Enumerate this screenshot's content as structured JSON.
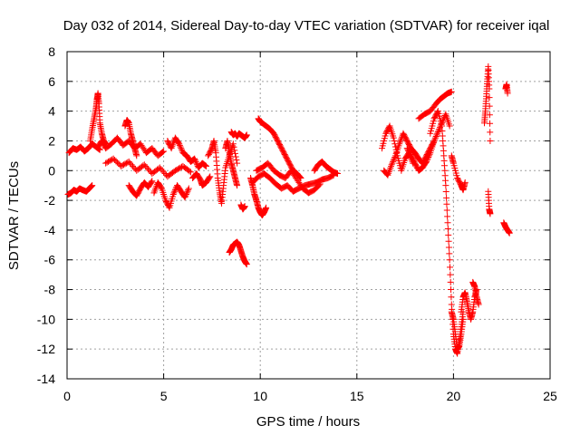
{
  "chart_data": {
    "type": "scatter",
    "title": "Day 032 of 2014, Sidereal Day-to-day VTEC variation (SDTVAR) for receiver iqal",
    "xlabel": "GPS time / hours",
    "ylabel": "SDTVAR / TECUs",
    "xlim": [
      0,
      25
    ],
    "ylim": [
      -14,
      8
    ],
    "xticks": [
      "0",
      "5",
      "10",
      "15",
      "20",
      "25"
    ],
    "yticks": [
      "8",
      "6",
      "4",
      "2",
      "0",
      "-2",
      "-4",
      "-6",
      "-8",
      "-10",
      "-12",
      "-14"
    ],
    "grid": true,
    "marker": "+",
    "color": "#ff0000",
    "series": [
      {
        "name": "SDTVAR",
        "segments": [
          {
            "x": [
              0.05,
              0.2,
              0.35,
              0.5,
              0.65,
              0.8,
              1.0,
              1.15,
              1.3
            ],
            "y": [
              -1.6,
              -1.5,
              -1.3,
              -1.4,
              -1.2,
              -1.3,
              -1.4,
              -1.2,
              -1.0
            ]
          },
          {
            "x": [
              0.1,
              0.3,
              0.5,
              0.7,
              0.9,
              1.1,
              1.3,
              1.5,
              1.7
            ],
            "y": [
              1.2,
              1.5,
              1.4,
              1.6,
              1.3,
              1.5,
              1.8,
              1.6,
              1.4
            ]
          },
          {
            "x": [
              1.2,
              1.3,
              1.4,
              1.5,
              1.55,
              1.6,
              1.65,
              1.7,
              1.8,
              1.9,
              2.0
            ],
            "y": [
              2.0,
              2.8,
              3.5,
              4.2,
              4.8,
              5.2,
              4.5,
              3.2,
              2.5,
              2.0,
              1.8
            ]
          },
          {
            "x": [
              1.6,
              1.8,
              2.0,
              2.3,
              2.6,
              2.9,
              3.2,
              3.5,
              3.8,
              4.1,
              4.4,
              4.7,
              5.0
            ],
            "y": [
              1.6,
              2.0,
              1.5,
              1.8,
              2.2,
              1.7,
              2.0,
              1.5,
              1.8,
              1.2,
              1.5,
              1.0,
              1.3
            ]
          },
          {
            "x": [
              2.0,
              2.4,
              2.8,
              3.2,
              3.6,
              4.0,
              4.4,
              4.8,
              5.2,
              5.6,
              6.0,
              6.4
            ],
            "y": [
              0.5,
              0.8,
              0.3,
              0.6,
              0.0,
              0.4,
              -0.2,
              0.2,
              -0.4,
              0.0,
              0.3,
              -0.1
            ]
          },
          {
            "x": [
              3.0,
              3.1,
              3.2,
              3.3,
              3.4,
              3.5,
              3.6
            ],
            "y": [
              3.0,
              3.4,
              3.2,
              2.5,
              2.0,
              1.5,
              1.0
            ]
          },
          {
            "x": [
              3.2,
              3.4,
              3.6,
              3.8,
              4.0,
              4.2,
              4.4
            ],
            "y": [
              -1.0,
              -1.4,
              -1.7,
              -1.2,
              -0.8,
              -1.1,
              -0.7
            ]
          },
          {
            "x": [
              4.5,
              4.7,
              4.9,
              5.1,
              5.3,
              5.5,
              5.7,
              5.9,
              6.1,
              6.3
            ],
            "y": [
              -1.5,
              -0.8,
              -1.2,
              -2.0,
              -2.5,
              -1.6,
              -1.0,
              -1.4,
              -1.8,
              -1.2
            ]
          },
          {
            "x": [
              5.2,
              5.4,
              5.6,
              5.8,
              6.0,
              6.2,
              6.4,
              6.6,
              6.8,
              7.0,
              7.2
            ],
            "y": [
              2.0,
              1.5,
              2.2,
              1.8,
              1.2,
              1.0,
              0.6,
              0.8,
              0.2,
              0.5,
              0.3
            ]
          },
          {
            "x": [
              6.5,
              6.7,
              6.9,
              7.0,
              7.2,
              7.4
            ],
            "y": [
              -0.5,
              -0.2,
              -0.6,
              -1.0,
              -0.8,
              -0.4
            ]
          },
          {
            "x": [
              7.3,
              7.5,
              7.6,
              7.7,
              7.8,
              7.9,
              8.0,
              8.1,
              8.2,
              8.4,
              8.6,
              8.8
            ],
            "y": [
              1.0,
              1.5,
              2.0,
              1.2,
              -0.5,
              -1.5,
              -2.2,
              -1.0,
              0.2,
              1.0,
              1.8,
              0.5
            ]
          },
          {
            "x": [
              8.2,
              8.3,
              8.4,
              8.5,
              8.6,
              8.7,
              8.8
            ],
            "y": [
              1.5,
              2.0,
              1.2,
              0.5,
              0.0,
              -0.5,
              -1.0
            ]
          },
          {
            "x": [
              8.5,
              8.6,
              8.7,
              8.8,
              8.9,
              9.0,
              9.1,
              9.2,
              9.3
            ],
            "y": [
              2.6,
              2.4,
              2.5,
              2.3,
              2.5,
              2.4,
              2.3,
              2.2,
              2.4
            ]
          },
          {
            "x": [
              9.0,
              9.1,
              9.2
            ],
            "y": [
              -2.3,
              -2.6,
              -2.4
            ]
          },
          {
            "x": [
              8.4,
              8.5,
              8.6,
              8.7,
              8.8,
              8.9,
              9.0,
              9.1,
              9.2,
              9.3
            ],
            "y": [
              -5.5,
              -5.3,
              -5.0,
              -4.9,
              -4.8,
              -5.0,
              -5.4,
              -5.8,
              -6.1,
              -6.3
            ]
          },
          {
            "x": [
              9.5,
              9.6,
              9.7,
              9.8,
              9.9,
              10.0,
              10.1,
              10.2,
              10.3
            ],
            "y": [
              -0.5,
              -1.0,
              -1.6,
              -2.0,
              -2.5,
              -2.8,
              -3.0,
              -2.8,
              -2.5
            ]
          },
          {
            "x": [
              9.9,
              10.0,
              10.1,
              10.3,
              10.5,
              10.7,
              10.9,
              11.1,
              11.3,
              11.5,
              11.7,
              11.9,
              12.1
            ],
            "y": [
              3.5,
              3.3,
              3.2,
              3.0,
              2.8,
              2.5,
              2.0,
              1.5,
              1.0,
              0.5,
              0.0,
              -0.2,
              -0.5
            ]
          },
          {
            "x": [
              9.6,
              9.9,
              10.2,
              10.5,
              10.8,
              11.1,
              11.4,
              11.7,
              12.0,
              12.3,
              12.6,
              12.9,
              13.2,
              13.5,
              13.8
            ],
            "y": [
              -0.8,
              -0.4,
              -0.2,
              -0.5,
              -0.9,
              -1.2,
              -1.0,
              -1.4,
              -1.2,
              -1.0,
              -0.9,
              -0.8,
              -0.6,
              -0.5,
              -0.3
            ]
          },
          {
            "x": [
              9.8,
              10.1,
              10.4,
              10.7,
              11.0,
              11.3,
              11.6,
              11.9,
              12.2,
              12.5,
              12.8,
              13.1
            ],
            "y": [
              0.0,
              0.2,
              0.5,
              0.0,
              -0.3,
              -0.5,
              0.0,
              -0.6,
              -1.2,
              -1.5,
              -1.3,
              -0.9
            ]
          },
          {
            "x": [
              12.8,
              13.0,
              13.2,
              13.4,
              13.6,
              13.8,
              14.0
            ],
            "y": [
              0.0,
              0.4,
              0.6,
              0.3,
              0.1,
              -0.1,
              -0.2
            ]
          },
          {
            "x": [
              16.3,
              16.5,
              16.7,
              16.9,
              17.1,
              17.3,
              17.5,
              17.7,
              17.9
            ],
            "y": [
              1.5,
              2.5,
              3.0,
              2.2,
              1.0,
              0.0,
              0.8,
              1.2,
              0.5
            ]
          },
          {
            "x": [
              16.4,
              16.6,
              16.8,
              17.0,
              17.2,
              17.4,
              17.6,
              17.8,
              18.0,
              18.2,
              18.4,
              18.6,
              18.8,
              19.0
            ],
            "y": [
              0.0,
              -0.3,
              0.4,
              1.0,
              1.8,
              2.5,
              2.0,
              1.5,
              1.2,
              0.8,
              0.5,
              1.0,
              1.5,
              2.0
            ]
          },
          {
            "x": [
              17.6,
              17.8,
              18.0,
              18.2,
              18.4,
              18.6,
              18.8,
              19.0,
              19.2,
              19.4,
              19.6,
              19.8
            ],
            "y": [
              1.5,
              1.0,
              0.5,
              0.0,
              0.2,
              0.6,
              1.2,
              2.0,
              2.6,
              3.2,
              3.8,
              3.0
            ]
          },
          {
            "x": [
              18.2,
              18.5,
              18.8,
              19.1,
              19.3,
              19.5,
              19.7,
              19.9
            ],
            "y": [
              3.5,
              3.8,
              4.0,
              4.5,
              4.8,
              5.0,
              5.2,
              5.3
            ]
          },
          {
            "x": [
              18.8,
              19.0,
              19.2,
              19.4,
              19.5,
              19.6,
              19.7,
              19.8,
              19.9,
              20.0,
              20.1,
              20.2,
              20.3,
              20.4,
              20.5
            ],
            "y": [
              2.5,
              3.5,
              4.0,
              3.0,
              1.0,
              -1.0,
              -3.5,
              -6.0,
              -9.0,
              -11.0,
              -12.0,
              -12.3,
              -11.5,
              -10.5,
              -9.5
            ]
          },
          {
            "x": [
              19.9,
              20.0,
              20.1,
              20.2,
              20.3,
              20.4,
              20.5
            ],
            "y": [
              -9.5,
              -10.0,
              -11.0,
              -12.0,
              -11.8,
              -11.0,
              -10.0
            ]
          },
          {
            "x": [
              20.4,
              20.5,
              20.6,
              20.7,
              20.8,
              20.9,
              21.0,
              21.1,
              21.2
            ],
            "y": [
              -9.5,
              -8.5,
              -8.2,
              -8.8,
              -9.5,
              -10.0,
              -9.5,
              -8.5,
              -8.0
            ]
          },
          {
            "x": [
              21.0,
              21.1,
              21.2,
              21.3
            ],
            "y": [
              -7.5,
              -7.8,
              -8.5,
              -9.0
            ]
          },
          {
            "x": [
              19.9,
              20.0,
              20.2,
              20.4,
              20.5,
              20.6
            ],
            "y": [
              1.0,
              0.5,
              -0.5,
              -1.0,
              -1.3,
              -0.8
            ]
          },
          {
            "x": [
              21.6,
              21.65,
              21.7,
              21.75,
              21.8,
              21.85,
              21.9
            ],
            "y": [
              3.2,
              4.0,
              5.0,
              6.0,
              7.0,
              5.5,
              2.0
            ]
          },
          {
            "x": [
              21.8,
              21.85,
              21.9
            ],
            "y": [
              -1.4,
              -2.6,
              -2.9
            ]
          },
          {
            "x": [
              22.6,
              22.7,
              22.8,
              22.9
            ],
            "y": [
              -3.5,
              -3.8,
              -4.0,
              -4.2
            ]
          },
          {
            "x": [
              22.7,
              22.75,
              22.8
            ],
            "y": [
              5.5,
              5.8,
              5.2
            ]
          }
        ]
      }
    ]
  }
}
